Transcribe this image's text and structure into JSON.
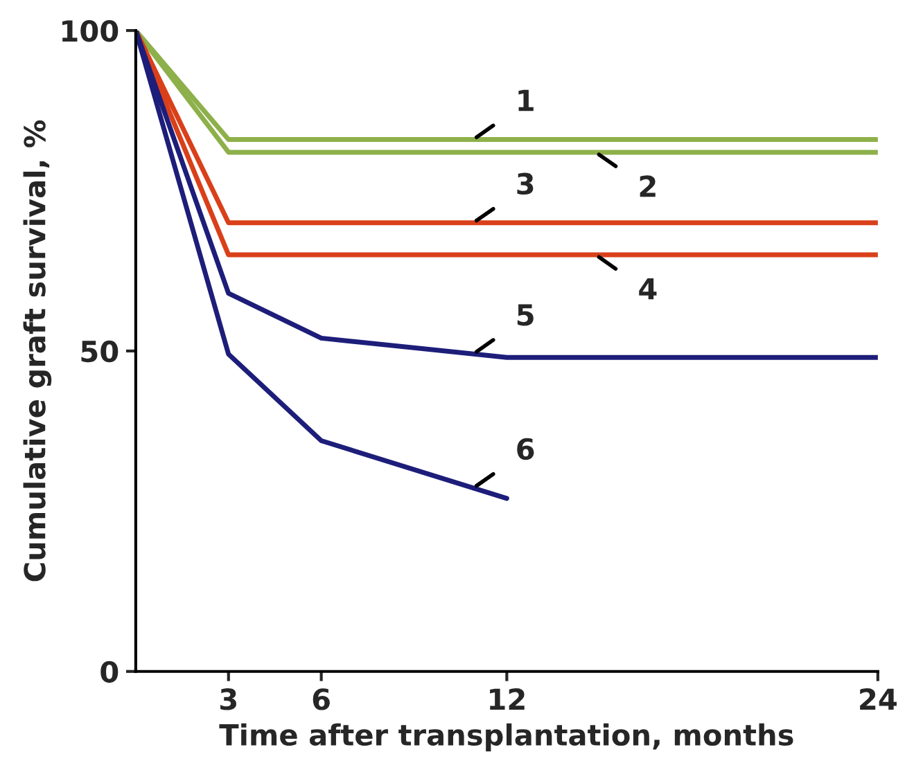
{
  "chart_data": {
    "type": "line",
    "xlabel": "Time after transplantation, months",
    "ylabel": "Cumulative graft survival, %",
    "xlim": [
      0,
      24
    ],
    "xticks": [
      3,
      6,
      12,
      24
    ],
    "ylim": [
      0,
      100
    ],
    "yticks": [
      0,
      50,
      100
    ],
    "grid": false,
    "legend": false,
    "marker": "none",
    "line_style": "solid",
    "series": [
      {
        "name": "1",
        "color": "#8db04a",
        "x": [
          0,
          3,
          24
        ],
        "values": [
          100,
          83,
          83
        ]
      },
      {
        "name": "2",
        "color": "#8db04a",
        "x": [
          0,
          3,
          24
        ],
        "values": [
          100,
          81,
          81
        ]
      },
      {
        "name": "3",
        "color": "#d9401a",
        "x": [
          0,
          3,
          24
        ],
        "values": [
          100,
          70,
          70
        ]
      },
      {
        "name": "4",
        "color": "#d9401a",
        "x": [
          0,
          3,
          24
        ],
        "values": [
          100,
          65,
          65
        ]
      },
      {
        "name": "5",
        "color": "#1d1d7a",
        "x": [
          0,
          3,
          6,
          12,
          24
        ],
        "values": [
          100,
          59,
          52,
          49,
          49
        ]
      },
      {
        "name": "6",
        "color": "#1d1d7a",
        "x": [
          0,
          3,
          6,
          12
        ],
        "values": [
          100,
          49.5,
          36,
          27
        ]
      }
    ]
  }
}
